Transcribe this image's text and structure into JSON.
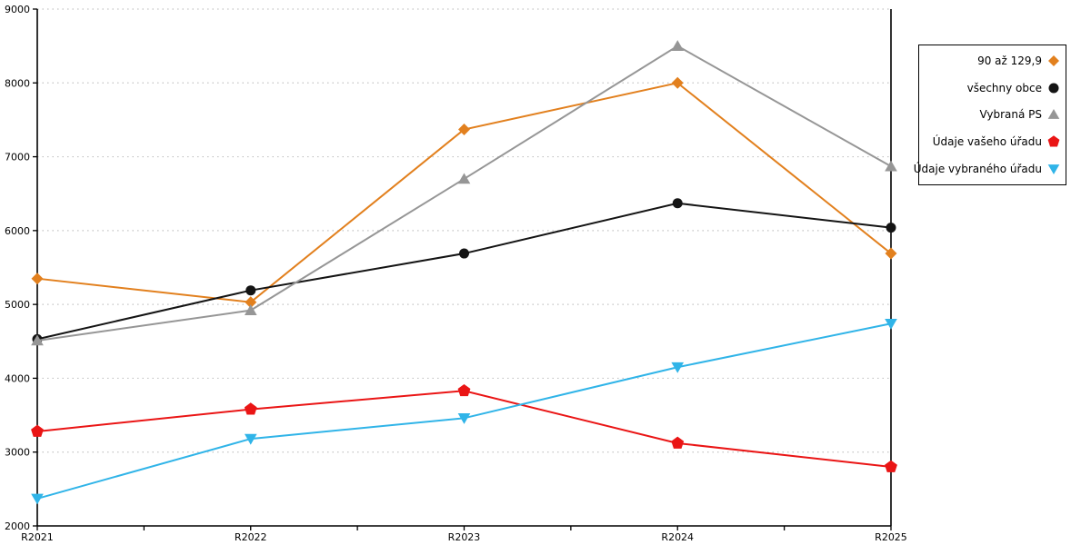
{
  "chart_data": {
    "type": "line",
    "title": "",
    "xlabel": "",
    "ylabel": "",
    "categories": [
      "R2021",
      "R2022",
      "R2023",
      "R2024",
      "R2025"
    ],
    "y_ticks": [
      2000,
      3000,
      4000,
      5000,
      6000,
      7000,
      8000,
      9000
    ],
    "ylim": [
      2000,
      9000
    ],
    "grid": "horizontal-dotted",
    "legend_position": "right-outside-boxed",
    "axis_color": "#000000",
    "gridline_color": "#c3c3c3",
    "series": [
      {
        "name": "90 až 129,9",
        "marker": "diamond",
        "color": "#E2801E",
        "values": [
          5350,
          5030,
          7370,
          8000,
          5690
        ]
      },
      {
        "name": "všechny obce",
        "marker": "circle",
        "color": "#141414",
        "values": [
          4530,
          5190,
          5690,
          6370,
          6040
        ]
      },
      {
        "name": "Vybraná PS",
        "marker": "triangle-up",
        "color": "#969696",
        "values": [
          4510,
          4920,
          6700,
          8500,
          6870
        ]
      },
      {
        "name": "Údaje vašeho úřadu",
        "marker": "pentagon",
        "color": "#EA1515",
        "values": [
          3280,
          3580,
          3830,
          3120,
          2800
        ]
      },
      {
        "name": "Údaje vybraného úřadu",
        "marker": "triangle-down",
        "color": "#30B4E8",
        "values": [
          2370,
          3180,
          3460,
          4150,
          4740
        ]
      }
    ]
  }
}
